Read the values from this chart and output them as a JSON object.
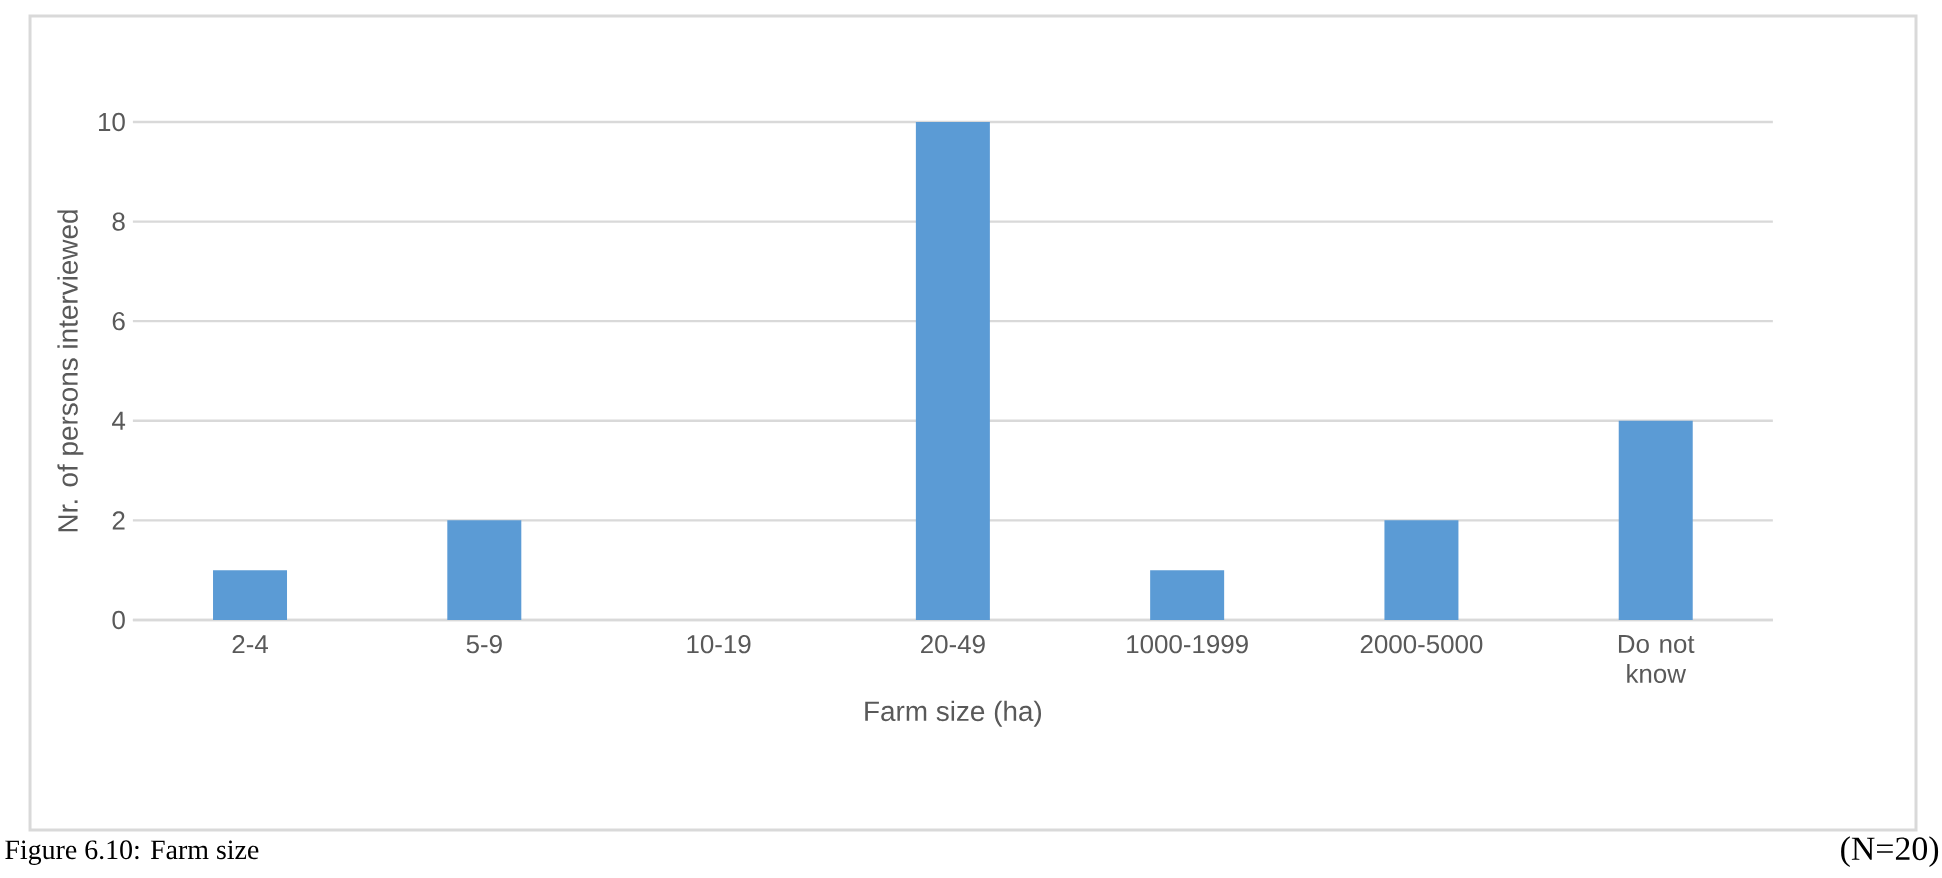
{
  "chart_data": {
    "type": "bar",
    "xlabel": "Farm size (ha)",
    "ylabel": "Nr. of persons interviewed",
    "categories": [
      "2-4",
      "5-9",
      "10-19",
      "20-49",
      "1000-1999",
      "2000-5000",
      "Do not know"
    ],
    "values": [
      1,
      2,
      0,
      10,
      1,
      2,
      4
    ],
    "color": "#5b9bd5",
    "ylim": [
      0,
      10
    ],
    "yticks": [
      0,
      2,
      4,
      6,
      8,
      10
    ],
    "grid": "y",
    "annotations": [
      "(N=20)",
      "Figure 6.10: Farm size"
    ]
  }
}
